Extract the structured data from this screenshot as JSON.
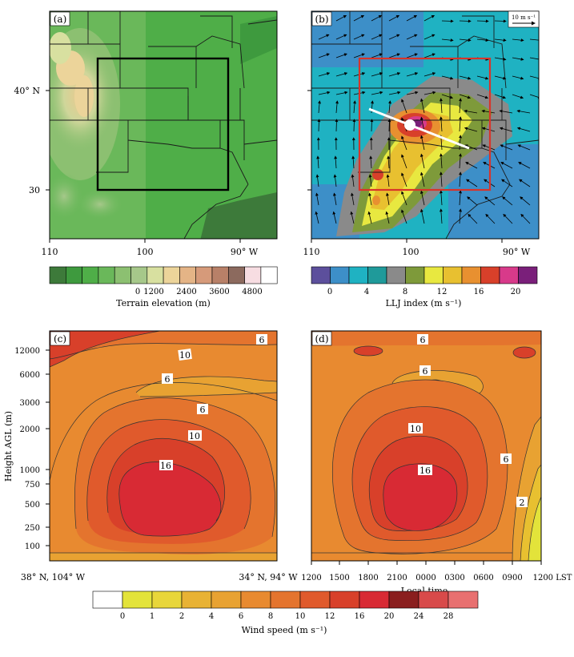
{
  "panels": {
    "a": {
      "label": "(a)",
      "ylabels": [
        "40° N",
        "30"
      ],
      "xlabels": [
        "110",
        "100",
        "90° W"
      ]
    },
    "b": {
      "label": "(b)",
      "ref_vector": "10 m s⁻¹",
      "xlabels": [
        "110",
        "100",
        "90° W"
      ]
    },
    "c": {
      "label": "(c)",
      "contour_labels": [
        "6",
        "10",
        "6",
        "6",
        "10",
        "16"
      ],
      "xlabels": [
        "38° N, 104° W",
        "34° N, 94° W"
      ]
    },
    "d": {
      "label": "(d)",
      "contour_labels": [
        "6",
        "6",
        "10",
        "16",
        "6",
        "2"
      ],
      "xlabels": [
        "1200",
        "1500",
        "1800",
        "2100",
        "0000",
        "0300",
        "0600",
        "0900",
        "1200 LST"
      ],
      "xtitle": "Local time"
    }
  },
  "height_axis": {
    "title": "Height AGL (m)",
    "ticks": [
      "12000",
      "6000",
      "3000",
      "2000",
      "1000",
      "750",
      "500",
      "250",
      "100"
    ]
  },
  "colorbars": {
    "terrain": {
      "colors": [
        "#3d7a3a",
        "#3e9a3e",
        "#4fae48",
        "#6ab85a",
        "#8cc071",
        "#a6c88a",
        "#d8e0a0",
        "#ecd49a",
        "#e4b486",
        "#d69a7a",
        "#b88068",
        "#8c6a5e",
        "#f7dde2",
        "#ffffff"
      ],
      "tick_labels": [
        "0",
        "1200",
        "2400",
        "3600",
        "4800"
      ],
      "title": "Terrain elevation (m)"
    },
    "llj": {
      "colors": [
        "#5c4f9c",
        "#3d8fc8",
        "#1fb2c2",
        "#1f9a9a",
        "#8a8a8a",
        "#7e9a3a",
        "#e8e840",
        "#e8c030",
        "#e89030",
        "#d8402a",
        "#d83a8a",
        "#7a1f7a"
      ],
      "tick_labels": [
        "0",
        "4",
        "8",
        "12",
        "16",
        "20"
      ],
      "title": "LLJ index (m s⁻¹)"
    },
    "wind": {
      "colors": [
        "#ffffff",
        "#e3e33a",
        "#e8d63a",
        "#e8b234",
        "#e8a232",
        "#e88a30",
        "#e4742e",
        "#e05a2c",
        "#d8402a",
        "#d82a34",
        "#8a1e1e",
        "#d84a4a",
        "#e87070"
      ],
      "tick_labels": [
        "0",
        "1",
        "2",
        "4",
        "6",
        "8",
        "10",
        "12",
        "16",
        "20",
        "24",
        "28"
      ],
      "title": "Wind speed (m s⁻¹)"
    }
  }
}
